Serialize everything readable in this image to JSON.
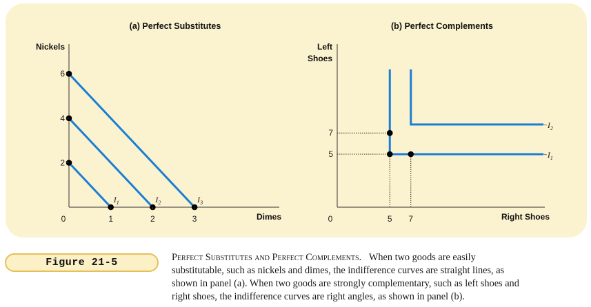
{
  "colors": {
    "curve": "#1a7fd4",
    "panel_bg": "#fbf2cf",
    "badge_border": "#e6bf5a"
  },
  "panel_a": {
    "title": "(a) Perfect Substitutes",
    "ylabel": "Nickels",
    "xlabel": "Dimes",
    "origin": "0",
    "x_ticks": [
      "1",
      "2",
      "3"
    ],
    "y_ticks": [
      "2",
      "4",
      "6"
    ]
  },
  "panel_b": {
    "title": "(b) Perfect Complements",
    "ylabel_line1": "Left",
    "ylabel_line2": "Shoes",
    "xlabel": "Right Shoes",
    "origin": "0",
    "x_ticks": [
      "5",
      "7"
    ],
    "y_ticks": [
      "7",
      "5"
    ]
  },
  "chart_data": [
    {
      "type": "line",
      "title": "(a) Perfect Substitutes",
      "xlabel": "Dimes",
      "ylabel": "Nickels",
      "xlim": [
        0,
        3.3
      ],
      "ylim": [
        0,
        6.5
      ],
      "series": [
        {
          "name": "I1",
          "x": [
            0,
            1
          ],
          "y": [
            2,
            0
          ]
        },
        {
          "name": "I2",
          "x": [
            0,
            2
          ],
          "y": [
            4,
            0
          ]
        },
        {
          "name": "I3",
          "x": [
            0,
            3
          ],
          "y": [
            6,
            0
          ]
        }
      ],
      "points": [
        {
          "x": 0,
          "y": 2
        },
        {
          "x": 0,
          "y": 4
        },
        {
          "x": 0,
          "y": 6
        },
        {
          "x": 1,
          "y": 0
        },
        {
          "x": 2,
          "y": 0
        },
        {
          "x": 3,
          "y": 0
        }
      ]
    },
    {
      "type": "line",
      "title": "(b) Perfect Complements",
      "xlabel": "Right Shoes",
      "ylabel": "Left Shoes",
      "xlim": [
        0,
        20
      ],
      "ylim": [
        0,
        13.7
      ],
      "series": [
        {
          "name": "I1",
          "x": [
            5,
            5,
            19.6
          ],
          "y": [
            13,
            5,
            5
          ]
        },
        {
          "name": "I2",
          "x": [
            7,
            7,
            19.6
          ],
          "y": [
            13,
            7.8,
            7.8
          ]
        }
      ],
      "points": [
        {
          "x": 5,
          "y": 7
        },
        {
          "x": 5,
          "y": 5
        },
        {
          "x": 7,
          "y": 5
        }
      ],
      "guides": [
        {
          "x": [
            0,
            5
          ],
          "y": [
            7,
            7
          ]
        },
        {
          "x": [
            0,
            5
          ],
          "y": [
            5,
            5
          ]
        },
        {
          "x": [
            5,
            5
          ],
          "y": [
            0,
            5
          ]
        },
        {
          "x": [
            7,
            7
          ],
          "y": [
            0,
            5
          ]
        }
      ]
    }
  ],
  "figure_label": "Figure 21-5",
  "caption": {
    "heading": "Perfect Substitutes and Perfect Complements.",
    "line1": "When two goods are easily",
    "line2": "substitutable, such as nickels and dimes, the indifference curves are straight lines, as",
    "line3": "shown in panel (a). When two goods are strongly complementary, such as left shoes and",
    "line4": "right shoes, the indifference curves are right angles, as shown in panel (b)."
  }
}
